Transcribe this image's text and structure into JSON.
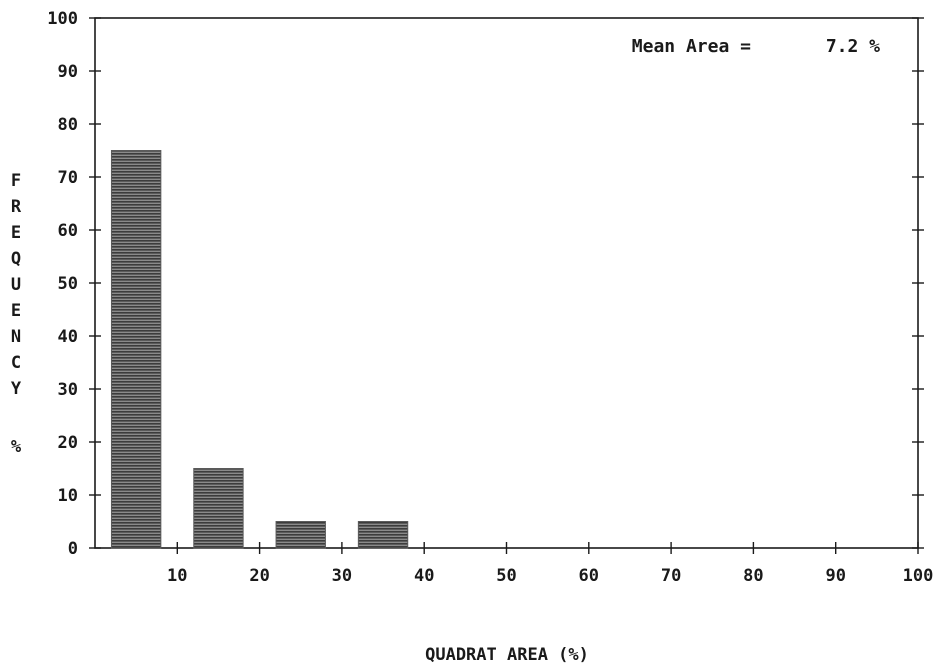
{
  "chart_data": {
    "type": "bar",
    "bins": [
      {
        "x_start": 2,
        "x_end": 8,
        "value": 75
      },
      {
        "x_start": 12,
        "x_end": 18,
        "value": 15
      },
      {
        "x_start": 22,
        "x_end": 28,
        "value": 5
      },
      {
        "x_start": 32,
        "x_end": 38,
        "value": 5
      }
    ],
    "title": "",
    "xlabel": "QUADRAT AREA (%)",
    "ylabel": "FREQUENCY",
    "ylabel_unit": "%",
    "xlim": [
      0,
      100
    ],
    "ylim": [
      0,
      100
    ],
    "x_ticks": [
      10,
      20,
      30,
      40,
      50,
      60,
      70,
      80,
      90,
      100
    ],
    "y_ticks": [
      0,
      10,
      20,
      30,
      40,
      50,
      60,
      70,
      80,
      90,
      100
    ],
    "grid": false,
    "annotation": {
      "label": "Mean Area =",
      "value": "7.2 %"
    },
    "colors": {
      "bar": "#5a5a5a",
      "axis": "#1a1a1a",
      "background": "#ffffff"
    }
  }
}
